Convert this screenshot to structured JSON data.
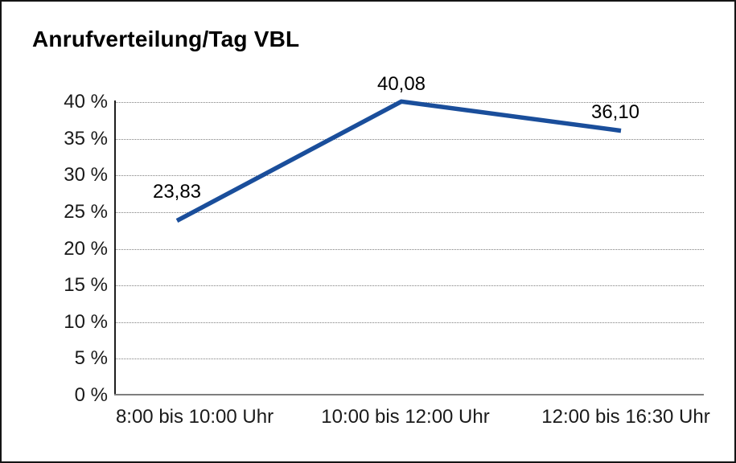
{
  "title": "Anrufverteilung/Tag VBL",
  "chart_data": {
    "type": "line",
    "title": "Anrufverteilung/Tag VBL",
    "categories": [
      "8:00 bis 10:00 Uhr",
      "10:00 bis 12:00 Uhr",
      "12:00 bis 16:30 Uhr"
    ],
    "values": [
      23.83,
      40.08,
      36.1
    ],
    "data_labels": [
      "23,83",
      "40,08",
      "36,10"
    ],
    "xlabel": "",
    "ylabel": "",
    "ylim": [
      0,
      40
    ],
    "y_tick_step": 5,
    "y_tick_labels": [
      "0 %",
      "5 %",
      "10 %",
      "15 %",
      "20 %",
      "25 %",
      "30 %",
      "35 %",
      "40 %"
    ],
    "grid": "horizontal-dotted",
    "legend": "none",
    "line_color": "#1a4e9b"
  },
  "colors": {
    "line": "#1a4e9b",
    "gridline": "#7f7f7f",
    "y_axis": "#1f1f1f",
    "baseline": "#7e7e7e",
    "frame_border": "#141414",
    "text": "#1a1a1a",
    "background": "#ffffff"
  }
}
